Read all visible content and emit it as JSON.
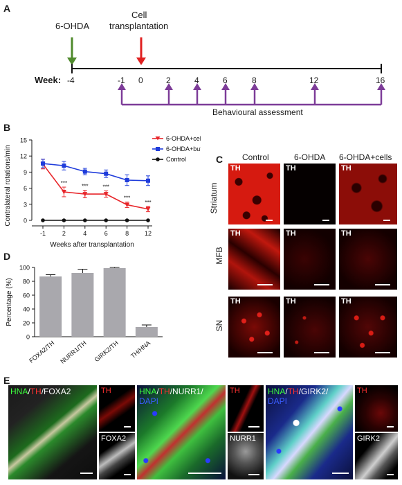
{
  "panel_labels": {
    "a": "A",
    "b": "B",
    "c": "C",
    "d": "D",
    "e": "E"
  },
  "timeline": {
    "lesion_label": "6-OHDA",
    "transplant_label_line1": "Cell",
    "transplant_label_line2": "transplantation",
    "week_label": "Week:",
    "ticks": [
      "-4",
      "-1",
      "0",
      "2",
      "4",
      "6",
      "8",
      "12",
      "16"
    ],
    "behaviour_label": "Behavioural assessment",
    "colors": {
      "lesion": "#4f8a2c",
      "transplant": "#e02020",
      "behaviour": "#7d3c98"
    }
  },
  "chart_data": [
    {
      "type": "line",
      "xlabel": "Weeks after transplantation",
      "ylabel": "Contralateral rotations/min",
      "x": [
        "-1",
        "2",
        "4",
        "6",
        "8",
        "12"
      ],
      "ylim": [
        0,
        15
      ],
      "yticks": [
        "0",
        "3",
        "6",
        "9",
        "12",
        "15"
      ],
      "legend_position": "top-right",
      "series": [
        {
          "name": "6-OHDA+cells",
          "values": [
            10.5,
            5.3,
            4.9,
            4.9,
            2.9,
            2.1
          ],
          "errors": [
            0.9,
            0.9,
            0.7,
            0.6,
            0.5,
            0.5
          ],
          "color": "#e8262b",
          "marker": "triangle-down"
        },
        {
          "name": "6-OHDA+buffer",
          "values": [
            10.6,
            10.2,
            9.1,
            8.7,
            7.5,
            7.4
          ],
          "errors": [
            0.8,
            0.8,
            0.6,
            0.7,
            1.0,
            0.9
          ],
          "color": "#1f3cdb",
          "marker": "square"
        },
        {
          "name": "Control",
          "values": [
            0,
            0,
            0,
            0,
            0,
            0
          ],
          "errors": [
            0,
            0,
            0,
            0,
            0,
            0
          ],
          "color": "#111111",
          "marker": "circle"
        }
      ],
      "annotations": [
        "***",
        "***",
        "***",
        "***",
        "***"
      ]
    },
    {
      "type": "bar",
      "categories": [
        "FOXA2/TH",
        "NURR1/TH",
        "GIRK2/TH",
        "TH/HNA"
      ],
      "values": [
        87,
        92,
        99,
        14
      ],
      "errors": [
        2.5,
        5.5,
        1,
        3
      ],
      "ylabel": "Percentage (%)",
      "ylim": [
        0,
        100
      ],
      "yticks": [
        "0",
        "20",
        "40",
        "60",
        "80",
        "100"
      ],
      "bar_color": "#a9a8ad"
    }
  ],
  "panel_c": {
    "columns": [
      "Control",
      "6-OHDA",
      "6-OHDA+cells"
    ],
    "rows": [
      "Striatum",
      "MFB",
      "SN"
    ],
    "stain": "TH"
  },
  "panel_e": {
    "groups": [
      {
        "merge_parts": [
          "HNA",
          "/",
          "TH",
          "/FOXA2"
        ],
        "small_top": "TH",
        "small_bottom": "FOXA2"
      },
      {
        "merge_parts": [
          "HNA",
          "/",
          "TH",
          "/NURR1/"
        ],
        "merge_line2": "DAPI",
        "small_top": "TH",
        "small_bottom": "NURR1"
      },
      {
        "merge_parts": [
          "HNA",
          "/",
          "TH",
          "/GIRK2/"
        ],
        "merge_line2": "DAPI",
        "small_top": "TH",
        "small_bottom": "GIRK2"
      }
    ],
    "colors": {
      "hna": "#3cff3c",
      "th": "#ff3030",
      "marker": "#ffffff",
      "dapi": "#3a5cff"
    }
  }
}
